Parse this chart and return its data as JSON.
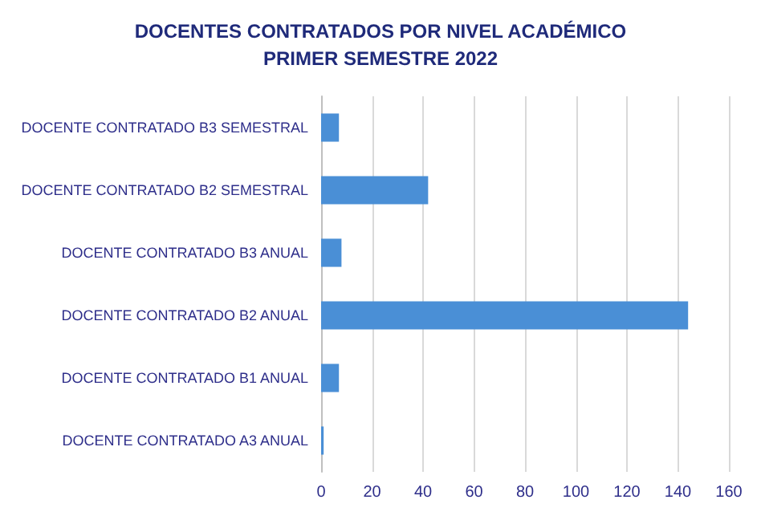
{
  "chart_data": {
    "type": "bar",
    "orientation": "horizontal",
    "title": "DOCENTES CONTRATADOS POR NIVEL ACADÉMICO\nPRIMER SEMESTRE 2022",
    "categories": [
      "DOCENTE CONTRATADO B3 SEMESTRAL",
      "DOCENTE CONTRATADO B2 SEMESTRAL",
      "DOCENTE CONTRATADO B3 ANUAL",
      "DOCENTE CONTRATADO B2 ANUAL",
      "DOCENTE CONTRATADO B1 ANUAL",
      "DOCENTE CONTRATADO A3 ANUAL"
    ],
    "values": [
      7,
      42,
      8,
      144,
      7,
      1
    ],
    "color": "#4a8fd6",
    "xlim": [
      0,
      160
    ],
    "xticks": [
      0,
      20,
      40,
      60,
      80,
      100,
      120,
      140,
      160
    ],
    "grid": "x"
  }
}
